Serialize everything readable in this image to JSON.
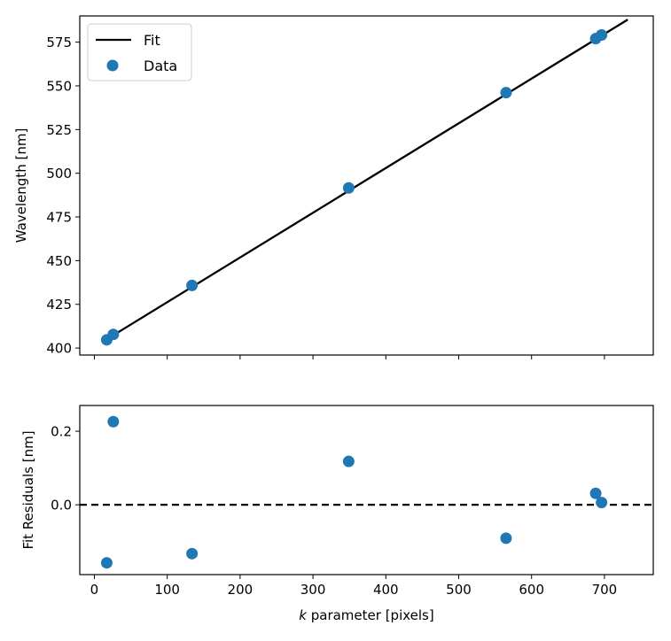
{
  "chart_data": [
    {
      "type": "line+scatter",
      "panel": "top",
      "xlim": [
        -20,
        767
      ],
      "ylim": [
        396,
        590
      ],
      "xticks": [
        0,
        100,
        200,
        300,
        400,
        500,
        600,
        700
      ],
      "yticks": [
        400,
        425,
        450,
        475,
        500,
        525,
        550,
        575
      ],
      "ytick_labels": [
        "400",
        "425",
        "450",
        "475",
        "500",
        "525",
        "550",
        "575"
      ],
      "ylabel": "Wavelength [nm]",
      "legend": {
        "placement": "top-left",
        "entries": [
          "Fit",
          "Data"
        ]
      },
      "series": [
        {
          "name": "Fit",
          "type": "line",
          "color": "#000000",
          "x": [
            26,
            732
          ],
          "y": [
            407.3,
            587.9
          ]
        },
        {
          "name": "Data",
          "type": "scatter",
          "color": "#1f77b4",
          "x": [
            17,
            26,
            134,
            349,
            565,
            688,
            696
          ],
          "y": [
            404.7,
            407.8,
            435.8,
            491.6,
            546.1,
            577.0,
            579.1
          ]
        }
      ]
    },
    {
      "type": "scatter",
      "panel": "bottom",
      "xlim": [
        -20,
        767
      ],
      "ylim": [
        -0.19,
        0.27
      ],
      "xticks": [
        0,
        100,
        200,
        300,
        400,
        500,
        600,
        700
      ],
      "xtick_labels": [
        "0",
        "100",
        "200",
        "300",
        "400",
        "500",
        "600",
        "700"
      ],
      "yticks": [
        0.0,
        0.2
      ],
      "ytick_labels": [
        "0.0",
        "0.2"
      ],
      "xlabel_italic": "k",
      "xlabel_rest": " parameter [pixels]",
      "ylabel": "Fit Residuals [nm]",
      "reference_line": {
        "y": 0.0,
        "style": "dashed",
        "color": "#000000"
      },
      "series": [
        {
          "type": "scatter",
          "color": "#1f77b4",
          "x": [
            17,
            26,
            134,
            349,
            565,
            688,
            696
          ],
          "y": [
            -0.158,
            0.226,
            -0.133,
            0.118,
            -0.091,
            0.031,
            0.006
          ]
        }
      ]
    }
  ]
}
